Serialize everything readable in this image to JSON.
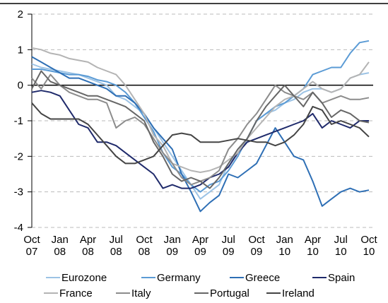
{
  "chart_data": {
    "type": "line",
    "categories": [
      "Oct 07",
      null,
      null,
      "Jan 08",
      null,
      null,
      "Apr 08",
      null,
      null,
      "Jul 08",
      null,
      null,
      "Oct 08",
      null,
      null,
      "Jan 09",
      null,
      null,
      "Apr 09",
      null,
      null,
      "Jul 09",
      null,
      null,
      "Oct 09",
      null,
      null,
      "Jan 10",
      null,
      null,
      "Apr 10",
      null,
      null,
      "Jul 10",
      null,
      null,
      "Oct 10"
    ],
    "ylim": [
      -4,
      2
    ],
    "yticks": [
      -4,
      -3,
      -2,
      -1,
      0,
      1,
      2
    ],
    "grid": true,
    "series": [
      {
        "name": "Eurozone",
        "color": "#9cc3e5",
        "values": [
          0.6,
          0.5,
          0.45,
          0.4,
          0.35,
          0.3,
          0.2,
          0.1,
          0.0,
          -0.3,
          -0.4,
          -0.6,
          -0.8,
          -1.2,
          -1.6,
          -2.0,
          -2.4,
          -2.8,
          -3.2,
          -3.0,
          -2.8,
          -2.2,
          -1.9,
          -1.5,
          -1.0,
          -0.8,
          -0.7,
          -0.5,
          -0.4,
          -0.2,
          -0.1,
          -0.1,
          -0.2,
          -0.1,
          0.2,
          0.3,
          0.35
        ]
      },
      {
        "name": "Germany",
        "color": "#5b9bd5",
        "values": [
          0.45,
          0.45,
          0.4,
          0.35,
          0.3,
          0.3,
          0.25,
          0.15,
          0.1,
          0.0,
          -0.2,
          -0.5,
          -0.9,
          -1.3,
          -1.9,
          -2.3,
          -2.5,
          -2.8,
          -3.0,
          -2.8,
          -2.7,
          -2.4,
          -2.0,
          -1.5,
          -1.0,
          -0.8,
          -0.6,
          -0.5,
          -0.3,
          -0.1,
          0.3,
          0.4,
          0.5,
          0.5,
          0.9,
          1.2,
          1.25
        ]
      },
      {
        "name": "Greece",
        "color": "#2e6fb5",
        "values": [
          0.8,
          0.65,
          0.5,
          0.35,
          0.2,
          0.2,
          0.1,
          0.0,
          -0.1,
          -0.3,
          -0.3,
          -0.5,
          -0.8,
          -1.2,
          -1.5,
          -1.8,
          -2.5,
          -3.0,
          -3.55,
          -3.3,
          -3.1,
          -2.5,
          -2.6,
          -2.4,
          -2.2,
          -1.7,
          -1.2,
          -1.6,
          -2.0,
          -2.1,
          -2.7,
          -3.4,
          -3.2,
          -3.0,
          -2.9,
          -3.0,
          -2.95
        ]
      },
      {
        "name": "Spain",
        "color": "#1f2a6b",
        "values": [
          -0.2,
          -0.15,
          -0.2,
          -0.3,
          -0.7,
          -1.1,
          -1.2,
          -1.6,
          -1.6,
          -1.7,
          -1.9,
          -2.1,
          -2.3,
          -2.5,
          -2.9,
          -2.8,
          -2.9,
          -2.9,
          -2.8,
          -2.6,
          -2.5,
          -2.3,
          -1.9,
          -1.6,
          -1.5,
          -1.4,
          -1.3,
          -1.2,
          -1.1,
          -1.0,
          -0.8,
          -1.2,
          -1.0,
          -1.1,
          -1.2,
          -1.0,
          -1.0
        ]
      },
      {
        "name": "France",
        "color": "#b4b4b4",
        "values": [
          1.05,
          1.0,
          0.9,
          0.85,
          0.75,
          0.7,
          0.65,
          0.5,
          0.4,
          0.3,
          0.0,
          -0.4,
          -0.8,
          -1.4,
          -1.7,
          -2.2,
          -2.3,
          -2.4,
          -2.45,
          -2.4,
          -2.3,
          -2.1,
          -1.9,
          -1.5,
          -1.2,
          -0.9,
          -0.6,
          -0.4,
          -0.3,
          -0.1,
          0.1,
          -0.1,
          -0.2,
          -0.1,
          0.2,
          0.3,
          0.65
        ]
      },
      {
        "name": "Italy",
        "color": "#8c8c8c",
        "values": [
          0.2,
          -0.1,
          0.3,
          0.0,
          -0.2,
          -0.3,
          -0.4,
          -0.4,
          -0.5,
          -1.2,
          -1.0,
          -0.9,
          -1.1,
          -1.5,
          -1.9,
          -2.2,
          -2.6,
          -2.8,
          -2.7,
          -2.6,
          -2.4,
          -1.8,
          -1.5,
          -1.1,
          -0.8,
          -0.4,
          0.0,
          -0.2,
          -0.3,
          -0.4,
          -0.2,
          -0.5,
          -0.4,
          -0.3,
          -0.4,
          -0.4,
          -0.35
        ]
      },
      {
        "name": "Portugal",
        "color": "#666666",
        "values": [
          -0.1,
          0.4,
          0.1,
          0.0,
          -0.1,
          -0.2,
          -0.3,
          -0.3,
          -0.4,
          -0.5,
          -0.6,
          -0.8,
          -1.0,
          -1.6,
          -2.0,
          -2.5,
          -2.7,
          -2.6,
          -2.7,
          -2.9,
          -2.6,
          -2.2,
          -1.8,
          -1.5,
          -1.0,
          -0.6,
          -0.3,
          0.0,
          -0.3,
          -0.6,
          -0.2,
          -0.5,
          -0.9,
          -0.7,
          -0.8,
          -1.0,
          -1.05
        ]
      },
      {
        "name": "Ireland",
        "color": "#444444",
        "values": [
          -0.5,
          -0.8,
          -0.95,
          -0.95,
          -0.95,
          -0.95,
          -1.1,
          -1.4,
          -1.7,
          -2.0,
          -2.2,
          -2.2,
          -2.1,
          -2.0,
          -1.7,
          -1.4,
          -1.35,
          -1.4,
          -1.6,
          -1.6,
          -1.6,
          -1.55,
          -1.5,
          -1.55,
          -1.6,
          -1.6,
          -1.7,
          -1.6,
          -1.4,
          -1.1,
          -0.6,
          -0.7,
          -1.1,
          -1.0,
          -1.1,
          -1.2,
          -1.45
        ]
      }
    ]
  }
}
